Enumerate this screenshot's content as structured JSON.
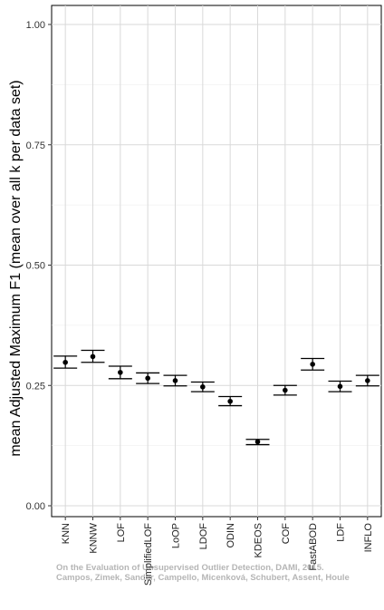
{
  "chart_data": {
    "type": "scatter",
    "ylabel": "mean Adjusted Maximum F1 (mean over all k per data set)",
    "xlabel": "",
    "ylim": [
      0,
      1
    ],
    "yticks": [
      "0.00",
      "0.25",
      "0.50",
      "0.75",
      "1.00"
    ],
    "grid": true,
    "categories": [
      "KNN",
      "KNNW",
      "LOF",
      "SimplifiedLOF",
      "LoOP",
      "LDOF",
      "ODIN",
      "KDEOS",
      "COF",
      "FastABOD",
      "LDF",
      "INFLO"
    ],
    "mean": [
      0.298,
      0.31,
      0.277,
      0.265,
      0.26,
      0.247,
      0.217,
      0.133,
      0.24,
      0.294,
      0.248,
      0.26
    ],
    "lower": [
      0.286,
      0.298,
      0.264,
      0.254,
      0.249,
      0.237,
      0.208,
      0.127,
      0.23,
      0.282,
      0.237,
      0.249
    ],
    "upper": [
      0.311,
      0.323,
      0.29,
      0.276,
      0.271,
      0.257,
      0.227,
      0.138,
      0.25,
      0.306,
      0.259,
      0.271
    ],
    "error_bars": true
  },
  "watermark": {
    "line1": "On the Evaluation of Unsupervised Outlier Detection, DAMI, 2015.",
    "line2": "Campos, Zimek, Sander, Campello, Micenková, Schubert, Assent, Houle"
  }
}
